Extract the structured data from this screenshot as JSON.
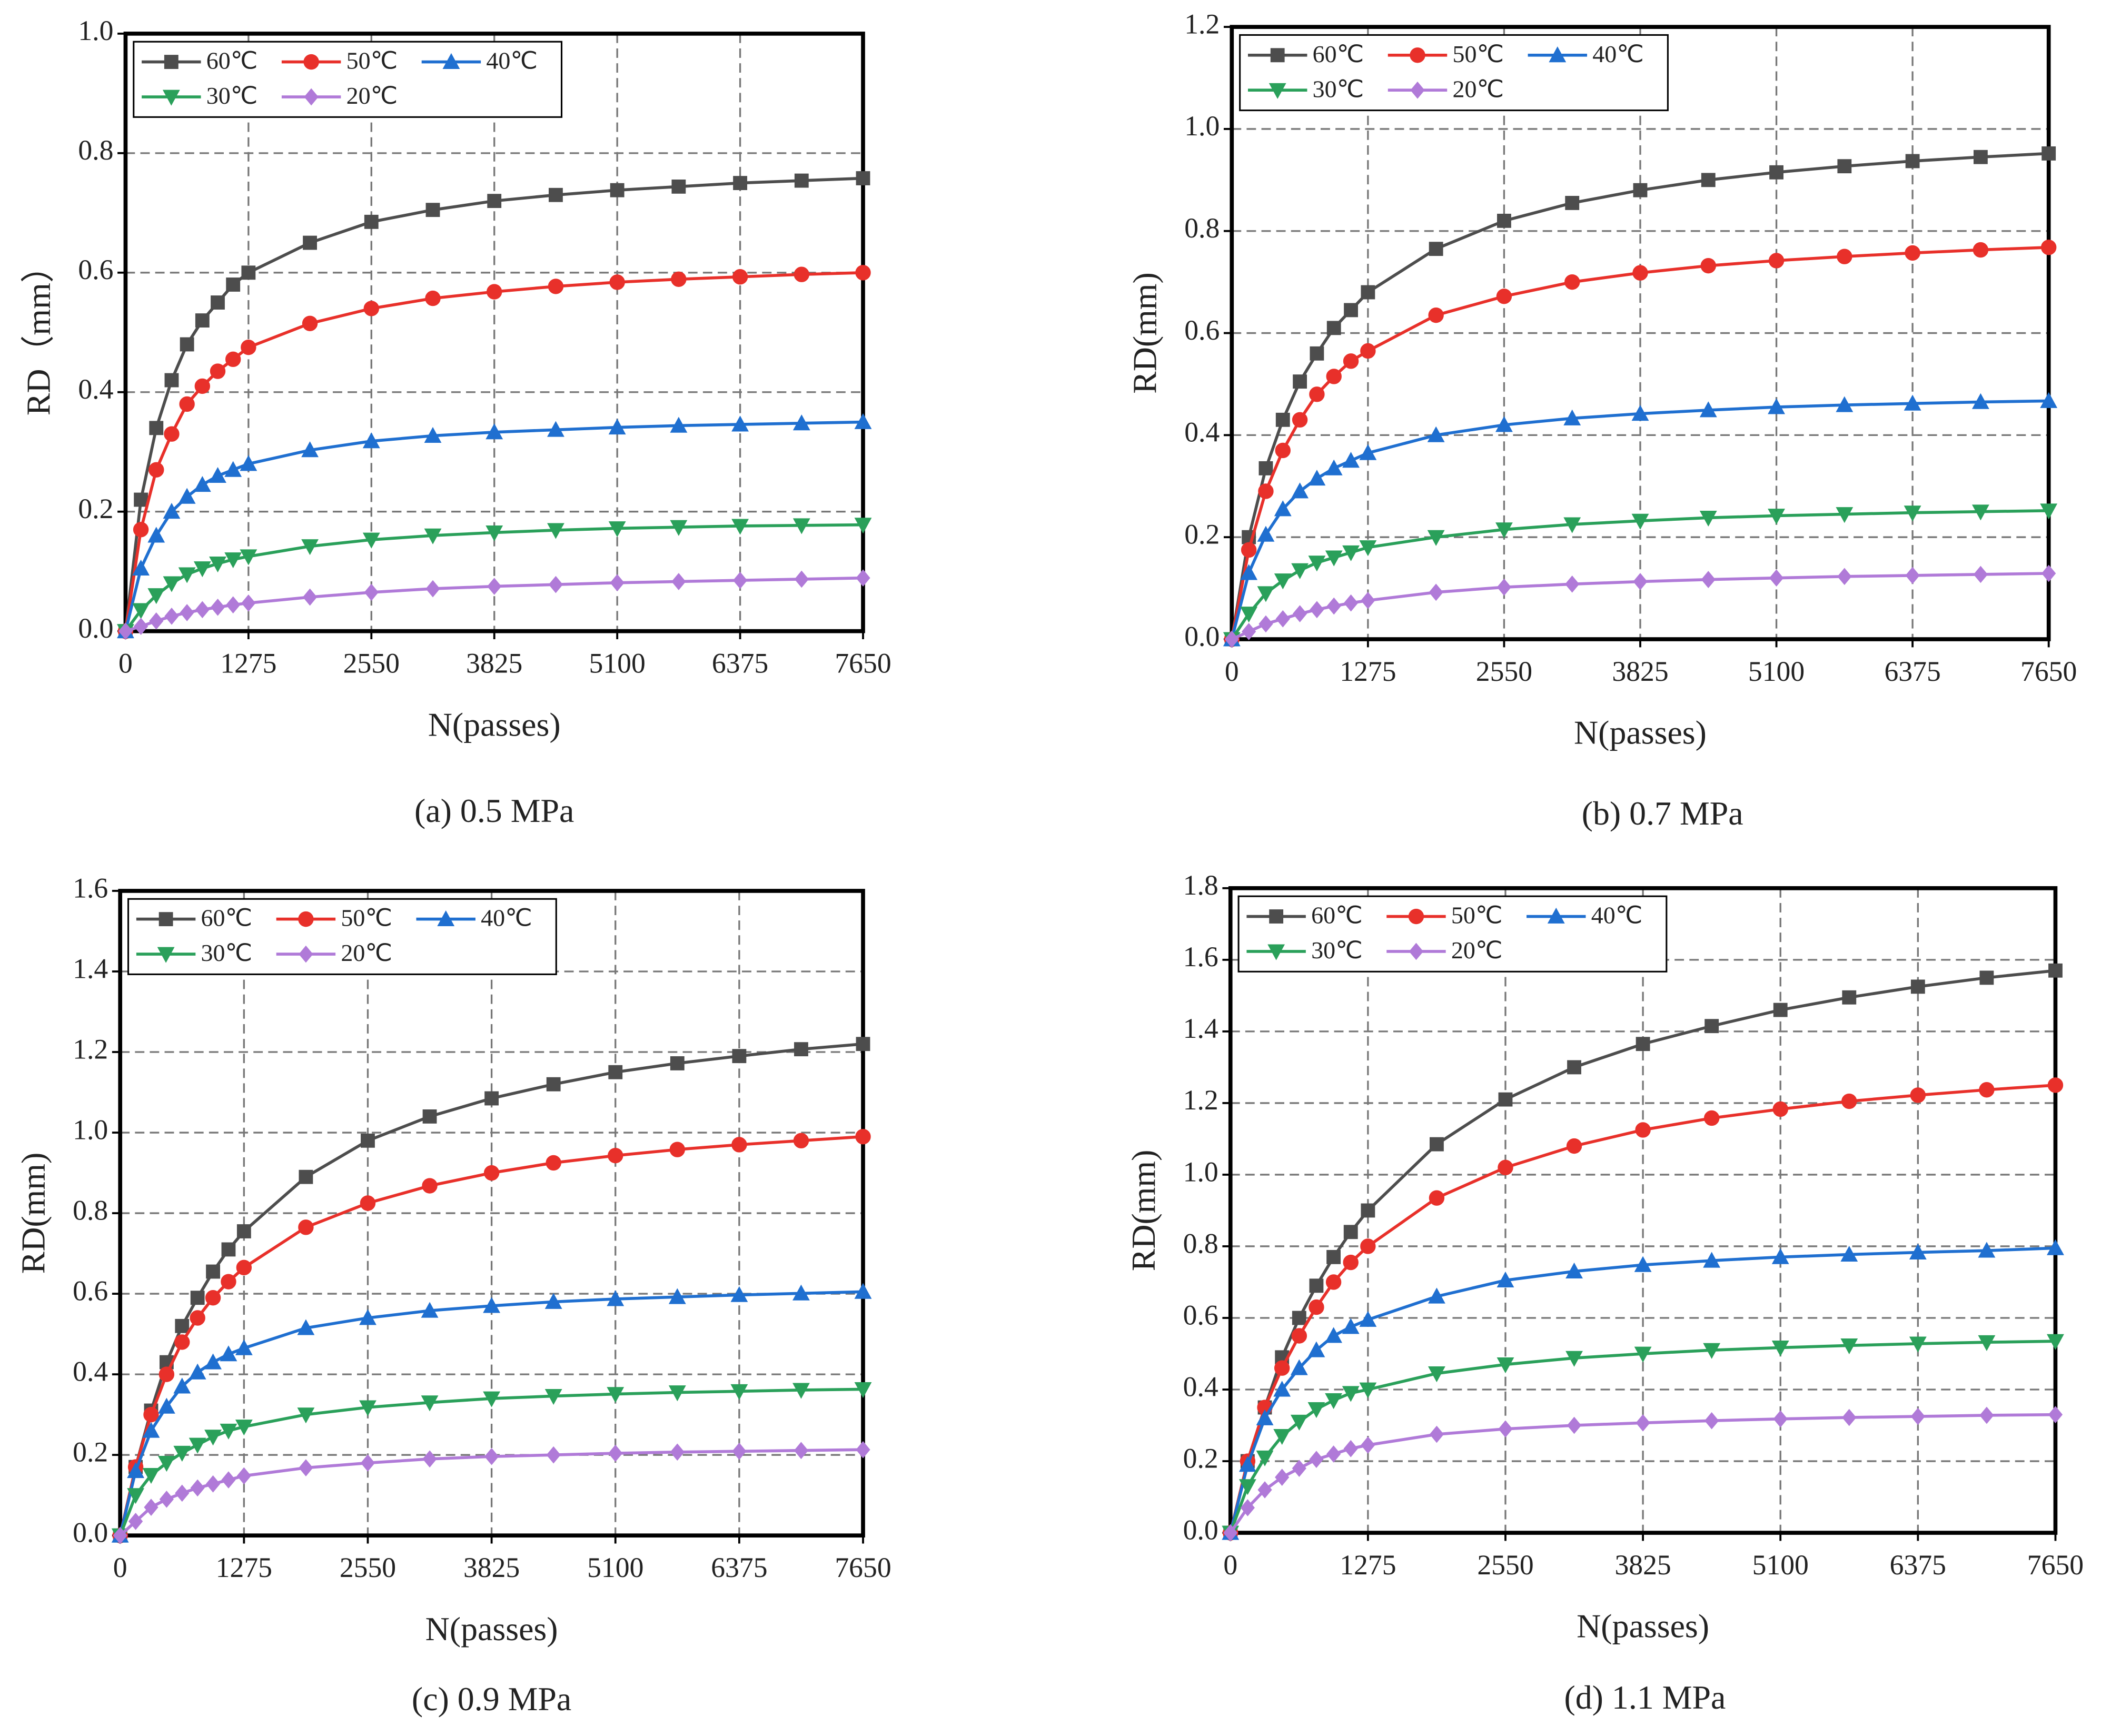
{
  "chart_data": [
    {
      "type": "line",
      "caption": "(a) 0.5 MPa",
      "x_label": "N(passes)",
      "y_label": "RD（mm）",
      "x": [
        0,
        159.375,
        318.75,
        478.125,
        637.5,
        796.875,
        956.25,
        1115.625,
        1275,
        1912.5,
        2550,
        3187.5,
        3825,
        4462.5,
        5100,
        5737.5,
        6375,
        7012.5,
        7650
      ],
      "xlim": [
        0,
        7650
      ],
      "xticks": [
        0,
        1275,
        2550,
        3825,
        5100,
        6375,
        7650
      ],
      "ylim": [
        0,
        1
      ],
      "yticks": [
        {
          "value": 0,
          "label": "0.0"
        },
        {
          "value": 0.2,
          "label": "0.2"
        },
        {
          "value": 0.4,
          "label": "0.4"
        },
        {
          "value": 0.6,
          "label": "0.6"
        },
        {
          "value": 0.8,
          "label": "0.8"
        },
        {
          "value": 1,
          "label": "1.0"
        }
      ],
      "grid": true,
      "legend": "upper left",
      "series": [
        {
          "name": "60℃",
          "color": "#4d4d4d",
          "marker": "square",
          "values": [
            0,
            0.22,
            0.34,
            0.42,
            0.48,
            0.52,
            0.55,
            0.58,
            0.6,
            0.65,
            0.685,
            0.705,
            0.72,
            0.73,
            0.738,
            0.744,
            0.75,
            0.754,
            0.758
          ]
        },
        {
          "name": "50℃",
          "color": "#e8302a",
          "marker": "circle",
          "values": [
            0,
            0.17,
            0.27,
            0.33,
            0.38,
            0.41,
            0.435,
            0.455,
            0.475,
            0.515,
            0.54,
            0.557,
            0.568,
            0.577,
            0.584,
            0.589,
            0.593,
            0.597,
            0.6
          ]
        },
        {
          "name": "40℃",
          "color": "#1f6fd0",
          "marker": "triangle-up",
          "values": [
            0,
            0.105,
            0.16,
            0.2,
            0.225,
            0.245,
            0.26,
            0.27,
            0.28,
            0.303,
            0.318,
            0.327,
            0.333,
            0.337,
            0.341,
            0.344,
            0.346,
            0.348,
            0.35
          ]
        },
        {
          "name": "30℃",
          "color": "#2aa05a",
          "marker": "triangle-down",
          "values": [
            0,
            0.035,
            0.06,
            0.08,
            0.095,
            0.105,
            0.113,
            0.12,
            0.125,
            0.142,
            0.153,
            0.16,
            0.165,
            0.169,
            0.172,
            0.174,
            0.176,
            0.177,
            0.178
          ]
        },
        {
          "name": "20℃",
          "color": "#b07ad8",
          "marker": "diamond",
          "values": [
            0,
            0.008,
            0.017,
            0.025,
            0.031,
            0.036,
            0.04,
            0.044,
            0.047,
            0.057,
            0.065,
            0.071,
            0.075,
            0.078,
            0.081,
            0.083,
            0.085,
            0.087,
            0.089
          ]
        }
      ]
    },
    {
      "type": "line",
      "caption": "(b) 0.7 MPa",
      "x_label": "N(passes)",
      "y_label": "RD(mm)",
      "x": [
        0,
        159.375,
        318.75,
        478.125,
        637.5,
        796.875,
        956.25,
        1115.625,
        1275,
        1912.5,
        2550,
        3187.5,
        3825,
        4462.5,
        5100,
        5737.5,
        6375,
        7012.5,
        7650
      ],
      "xlim": [
        0,
        7650
      ],
      "xticks": [
        0,
        1275,
        2550,
        3825,
        5100,
        6375,
        7650
      ],
      "ylim": [
        0,
        1.2
      ],
      "yticks": [
        {
          "value": 0,
          "label": "0.0"
        },
        {
          "value": 0.2,
          "label": "0.2"
        },
        {
          "value": 0.4,
          "label": "0.4"
        },
        {
          "value": 0.6,
          "label": "0.6"
        },
        {
          "value": 0.8,
          "label": "0.8"
        },
        {
          "value": 1,
          "label": "1.0"
        },
        {
          "value": 1.2,
          "label": "1.2"
        }
      ],
      "grid": true,
      "legend": "upper left",
      "series": [
        {
          "name": "60℃",
          "color": "#4d4d4d",
          "marker": "square",
          "values": [
            0,
            0.2,
            0.335,
            0.43,
            0.505,
            0.56,
            0.61,
            0.645,
            0.68,
            0.765,
            0.82,
            0.855,
            0.88,
            0.9,
            0.915,
            0.927,
            0.937,
            0.945,
            0.952
          ]
        },
        {
          "name": "50℃",
          "color": "#e8302a",
          "marker": "circle",
          "values": [
            0,
            0.175,
            0.29,
            0.37,
            0.43,
            0.48,
            0.515,
            0.545,
            0.565,
            0.635,
            0.672,
            0.7,
            0.718,
            0.732,
            0.742,
            0.75,
            0.757,
            0.763,
            0.768
          ]
        },
        {
          "name": "40℃",
          "color": "#1f6fd0",
          "marker": "triangle-up",
          "values": [
            0,
            0.13,
            0.205,
            0.255,
            0.29,
            0.315,
            0.335,
            0.35,
            0.365,
            0.4,
            0.42,
            0.433,
            0.442,
            0.449,
            0.455,
            0.459,
            0.462,
            0.465,
            0.467
          ]
        },
        {
          "name": "30℃",
          "color": "#2aa05a",
          "marker": "triangle-down",
          "values": [
            0,
            0.05,
            0.09,
            0.115,
            0.135,
            0.15,
            0.16,
            0.17,
            0.18,
            0.2,
            0.215,
            0.225,
            0.232,
            0.238,
            0.242,
            0.245,
            0.248,
            0.25,
            0.252
          ]
        },
        {
          "name": "20℃",
          "color": "#b07ad8",
          "marker": "diamond",
          "values": [
            0,
            0.015,
            0.03,
            0.04,
            0.05,
            0.058,
            0.065,
            0.071,
            0.076,
            0.092,
            0.102,
            0.108,
            0.113,
            0.117,
            0.12,
            0.123,
            0.125,
            0.127,
            0.129
          ]
        }
      ]
    },
    {
      "type": "line",
      "caption": "(c) 0.9 MPa",
      "x_label": "N(passes)",
      "y_label": "RD(mm)",
      "x": [
        0,
        159.375,
        318.75,
        478.125,
        637.5,
        796.875,
        956.25,
        1115.625,
        1275,
        1912.5,
        2550,
        3187.5,
        3825,
        4462.5,
        5100,
        5737.5,
        6375,
        7012.5,
        7650
      ],
      "xlim": [
        0,
        7650
      ],
      "xticks": [
        0,
        1275,
        2550,
        3825,
        5100,
        6375,
        7650
      ],
      "ylim": [
        0,
        1.6
      ],
      "yticks": [
        {
          "value": 0,
          "label": "0.0"
        },
        {
          "value": 0.2,
          "label": "0.2"
        },
        {
          "value": 0.4,
          "label": "0.4"
        },
        {
          "value": 0.6,
          "label": "0.6"
        },
        {
          "value": 0.8,
          "label": "0.8"
        },
        {
          "value": 1,
          "label": "1.0"
        },
        {
          "value": 1.2,
          "label": "1.2"
        },
        {
          "value": 1.4,
          "label": "1.4"
        },
        {
          "value": 1.6,
          "label": "1.6"
        }
      ],
      "grid": true,
      "legend": "upper left",
      "series": [
        {
          "name": "60℃",
          "color": "#4d4d4d",
          "marker": "square",
          "values": [
            0,
            0.17,
            0.31,
            0.43,
            0.52,
            0.59,
            0.655,
            0.71,
            0.755,
            0.89,
            0.98,
            1.04,
            1.085,
            1.12,
            1.15,
            1.172,
            1.19,
            1.207,
            1.22
          ]
        },
        {
          "name": "50℃",
          "color": "#e8302a",
          "marker": "circle",
          "values": [
            0,
            0.17,
            0.3,
            0.4,
            0.48,
            0.54,
            0.59,
            0.63,
            0.665,
            0.765,
            0.825,
            0.868,
            0.9,
            0.925,
            0.943,
            0.958,
            0.97,
            0.98,
            0.99
          ]
        },
        {
          "name": "40℃",
          "color": "#1f6fd0",
          "marker": "triangle-up",
          "values": [
            0,
            0.16,
            0.26,
            0.32,
            0.37,
            0.405,
            0.43,
            0.45,
            0.465,
            0.515,
            0.54,
            0.558,
            0.57,
            0.58,
            0.587,
            0.592,
            0.597,
            0.601,
            0.605
          ]
        },
        {
          "name": "30℃",
          "color": "#2aa05a",
          "marker": "triangle-down",
          "values": [
            0,
            0.1,
            0.15,
            0.18,
            0.205,
            0.225,
            0.245,
            0.26,
            0.27,
            0.3,
            0.318,
            0.33,
            0.34,
            0.346,
            0.351,
            0.355,
            0.358,
            0.361,
            0.363
          ]
        },
        {
          "name": "20℃",
          "color": "#b07ad8",
          "marker": "diamond",
          "values": [
            0,
            0.035,
            0.07,
            0.09,
            0.105,
            0.118,
            0.128,
            0.138,
            0.148,
            0.168,
            0.18,
            0.19,
            0.196,
            0.2,
            0.204,
            0.207,
            0.209,
            0.211,
            0.213
          ]
        }
      ]
    },
    {
      "type": "line",
      "caption": "(d) 1.1 MPa",
      "x_label": "N(passes)",
      "y_label": "RD(mm)",
      "x": [
        0,
        159.375,
        318.75,
        478.125,
        637.5,
        796.875,
        956.25,
        1115.625,
        1275,
        1912.5,
        2550,
        3187.5,
        3825,
        4462.5,
        5100,
        5737.5,
        6375,
        7012.5,
        7650
      ],
      "xlim": [
        0,
        7650
      ],
      "xticks": [
        0,
        1275,
        2550,
        3825,
        5100,
        6375,
        7650
      ],
      "ylim": [
        0,
        1.8
      ],
      "yticks": [
        {
          "value": 0,
          "label": "0.0"
        },
        {
          "value": 0.2,
          "label": "0.2"
        },
        {
          "value": 0.4,
          "label": "0.4"
        },
        {
          "value": 0.6,
          "label": "0.6"
        },
        {
          "value": 0.8,
          "label": "0.8"
        },
        {
          "value": 1,
          "label": "1.0"
        },
        {
          "value": 1.2,
          "label": "1.2"
        },
        {
          "value": 1.4,
          "label": "1.4"
        },
        {
          "value": 1.6,
          "label": "1.6"
        },
        {
          "value": 1.8,
          "label": "1.8"
        }
      ],
      "grid": true,
      "legend": "upper left",
      "series": [
        {
          "name": "60℃",
          "color": "#4d4d4d",
          "marker": "square",
          "values": [
            0,
            0.2,
            0.35,
            0.49,
            0.6,
            0.69,
            0.77,
            0.84,
            0.9,
            1.085,
            1.21,
            1.3,
            1.365,
            1.415,
            1.46,
            1.495,
            1.525,
            1.55,
            1.57
          ]
        },
        {
          "name": "50℃",
          "color": "#e8302a",
          "marker": "circle",
          "values": [
            0,
            0.2,
            0.35,
            0.46,
            0.55,
            0.63,
            0.7,
            0.755,
            0.8,
            0.935,
            1.02,
            1.08,
            1.125,
            1.158,
            1.183,
            1.205,
            1.222,
            1.237,
            1.25
          ]
        },
        {
          "name": "40℃",
          "color": "#1f6fd0",
          "marker": "triangle-up",
          "values": [
            0,
            0.19,
            0.32,
            0.4,
            0.46,
            0.51,
            0.55,
            0.575,
            0.595,
            0.66,
            0.705,
            0.73,
            0.748,
            0.76,
            0.77,
            0.777,
            0.783,
            0.788,
            0.795
          ]
        },
        {
          "name": "30℃",
          "color": "#2aa05a",
          "marker": "triangle-down",
          "values": [
            0,
            0.13,
            0.21,
            0.27,
            0.31,
            0.345,
            0.37,
            0.39,
            0.4,
            0.445,
            0.47,
            0.488,
            0.5,
            0.51,
            0.517,
            0.523,
            0.528,
            0.532,
            0.535
          ]
        },
        {
          "name": "20℃",
          "color": "#b07ad8",
          "marker": "diamond",
          "values": [
            0,
            0.07,
            0.12,
            0.155,
            0.18,
            0.205,
            0.22,
            0.235,
            0.245,
            0.275,
            0.29,
            0.3,
            0.307,
            0.313,
            0.318,
            0.322,
            0.325,
            0.328,
            0.33
          ]
        }
      ]
    }
  ]
}
